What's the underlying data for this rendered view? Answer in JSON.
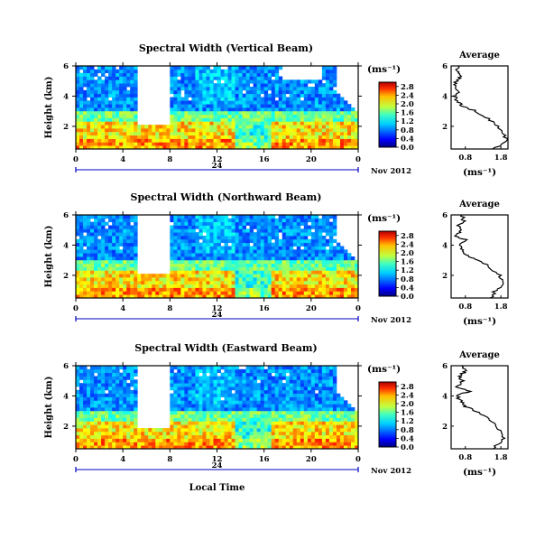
{
  "chart_data": [
    {
      "type": "heatmap",
      "title": "Spectral Width (Vertical Beam)",
      "ylabel": "Height (km)",
      "xlabel": "",
      "x_ticks": [
        "0",
        "4",
        "8",
        "12",
        "16",
        "20",
        "0"
      ],
      "y_ticks": [
        "6",
        "4",
        "2"
      ],
      "xlim": [
        0,
        24
      ],
      "ylim": [
        0.5,
        6
      ],
      "date_marker": "24",
      "date_label": "Nov 2012",
      "colorbar": {
        "unit": "(ms⁻¹)",
        "ticks": [
          "2.8",
          "2.4",
          "2.0",
          "1.6",
          "1.2",
          "0.8",
          "0.4",
          "0.0"
        ],
        "range": [
          0.0,
          3.0
        ]
      },
      "average_profile": {
        "title": "Average",
        "xlabel": "(ms⁻¹)",
        "x_ticks": [
          "0.8",
          "1.8"
        ],
        "y_ticks": [
          "6",
          "4",
          "2"
        ],
        "xlim": [
          0.4,
          2.0
        ],
        "heights_km": [
          0.5,
          1.0,
          1.5,
          2.0,
          2.5,
          3.0,
          3.3,
          3.6,
          4.0,
          4.3,
          4.6,
          5.0,
          5.3,
          5.6,
          6.0
        ],
        "values": [
          1.6,
          1.95,
          1.9,
          1.7,
          1.45,
          1.1,
          0.75,
          0.6,
          0.5,
          0.62,
          0.48,
          0.55,
          0.68,
          0.58,
          0.6
        ]
      },
      "grid": false
    },
    {
      "type": "heatmap",
      "title": "Spectral Width (Northward Beam)",
      "ylabel": "Height (km)",
      "xlabel": "",
      "x_ticks": [
        "0",
        "4",
        "8",
        "12",
        "16",
        "20",
        "0"
      ],
      "y_ticks": [
        "6",
        "4",
        "2"
      ],
      "xlim": [
        0,
        24
      ],
      "ylim": [
        0.5,
        6
      ],
      "date_marker": "24",
      "date_label": "Nov 2012",
      "colorbar": {
        "unit": "(ms⁻¹)",
        "ticks": [
          "2.8",
          "2.4",
          "2.0",
          "1.6",
          "1.2",
          "0.8",
          "0.4",
          "0.0"
        ],
        "range": [
          0.0,
          3.0
        ]
      },
      "average_profile": {
        "title": "Average",
        "xlabel": "(ms⁻¹)",
        "x_ticks": [
          "0.8",
          "1.8"
        ],
        "y_ticks": [
          "6",
          "4",
          "2"
        ],
        "xlim": [
          0.4,
          2.0
        ],
        "heights_km": [
          0.5,
          1.0,
          1.5,
          2.0,
          2.5,
          3.0,
          3.3,
          3.6,
          4.0,
          4.3,
          4.6,
          5.0,
          5.3,
          5.6,
          6.0
        ],
        "values": [
          1.5,
          1.65,
          1.9,
          1.75,
          1.5,
          1.2,
          0.85,
          0.75,
          0.6,
          0.85,
          0.55,
          0.7,
          0.62,
          0.75,
          0.7
        ]
      },
      "grid": false
    },
    {
      "type": "heatmap",
      "title": "Spectral Width (Eastward Beam)",
      "ylabel": "Height (km)",
      "xlabel": "Local Time",
      "x_ticks": [
        "0",
        "4",
        "8",
        "12",
        "16",
        "20",
        "0"
      ],
      "y_ticks": [
        "6",
        "4",
        "2"
      ],
      "xlim": [
        0,
        24
      ],
      "ylim": [
        0.5,
        6
      ],
      "date_marker": "24",
      "date_label": "Nov 2012",
      "colorbar": {
        "unit": "(ms⁻¹)",
        "ticks": [
          "2.8",
          "2.4",
          "2.0",
          "1.6",
          "1.2",
          "0.8",
          "0.4",
          "0.0"
        ],
        "range": [
          0.0,
          3.0
        ]
      },
      "average_profile": {
        "title": "Average",
        "xlabel": "(ms⁻¹)",
        "x_ticks": [
          "0.8",
          "1.8"
        ],
        "y_ticks": [
          "6",
          "4",
          "2"
        ],
        "xlim": [
          0.4,
          2.0
        ],
        "heights_km": [
          0.5,
          1.0,
          1.5,
          2.0,
          2.5,
          3.0,
          3.3,
          3.6,
          4.0,
          4.3,
          4.6,
          5.0,
          5.3,
          5.6,
          6.0
        ],
        "values": [
          1.55,
          1.85,
          1.85,
          1.7,
          1.45,
          1.1,
          0.8,
          0.7,
          0.55,
          0.9,
          0.55,
          0.72,
          0.6,
          0.8,
          0.7
        ]
      },
      "grid": false
    }
  ]
}
